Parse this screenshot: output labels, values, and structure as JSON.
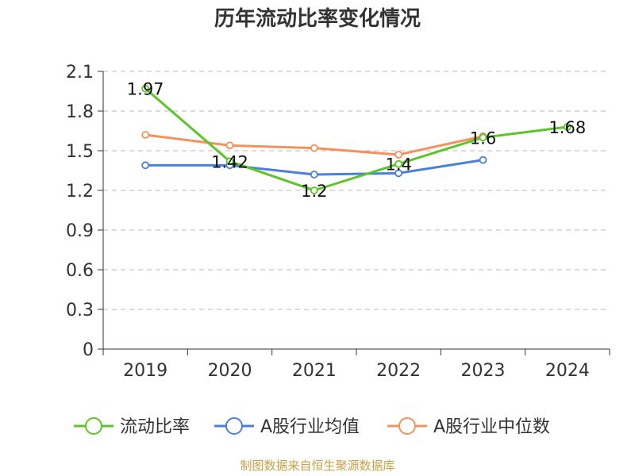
{
  "chart_data": {
    "type": "line",
    "title": "历年流动比率变化情况",
    "categories": [
      "2019",
      "2020",
      "2021",
      "2022",
      "2023",
      "2024"
    ],
    "ylim": [
      0,
      2.1
    ],
    "yticks": [
      "0",
      "0.3",
      "0.6",
      "0.9",
      "1.2",
      "1.5",
      "1.8",
      "2.1"
    ],
    "grid": true,
    "legend_position": "bottom",
    "series": [
      {
        "name": "流动比率",
        "color": "#5cc52a",
        "values": [
          1.97,
          1.42,
          1.2,
          1.4,
          1.6,
          1.68
        ],
        "labels": [
          "1.97",
          "1.42",
          "1.2",
          "1.4",
          "1.6",
          "1.68"
        ]
      },
      {
        "name": "A股行业均值",
        "color": "#4a7fdc",
        "values": [
          1.39,
          1.39,
          1.32,
          1.33,
          1.43,
          null
        ]
      },
      {
        "name": "A股行业中位数",
        "color": "#f4915c",
        "values": [
          1.62,
          1.54,
          1.52,
          1.47,
          1.61,
          null
        ]
      }
    ]
  },
  "source": "制图数据来自恒生聚源数据库"
}
